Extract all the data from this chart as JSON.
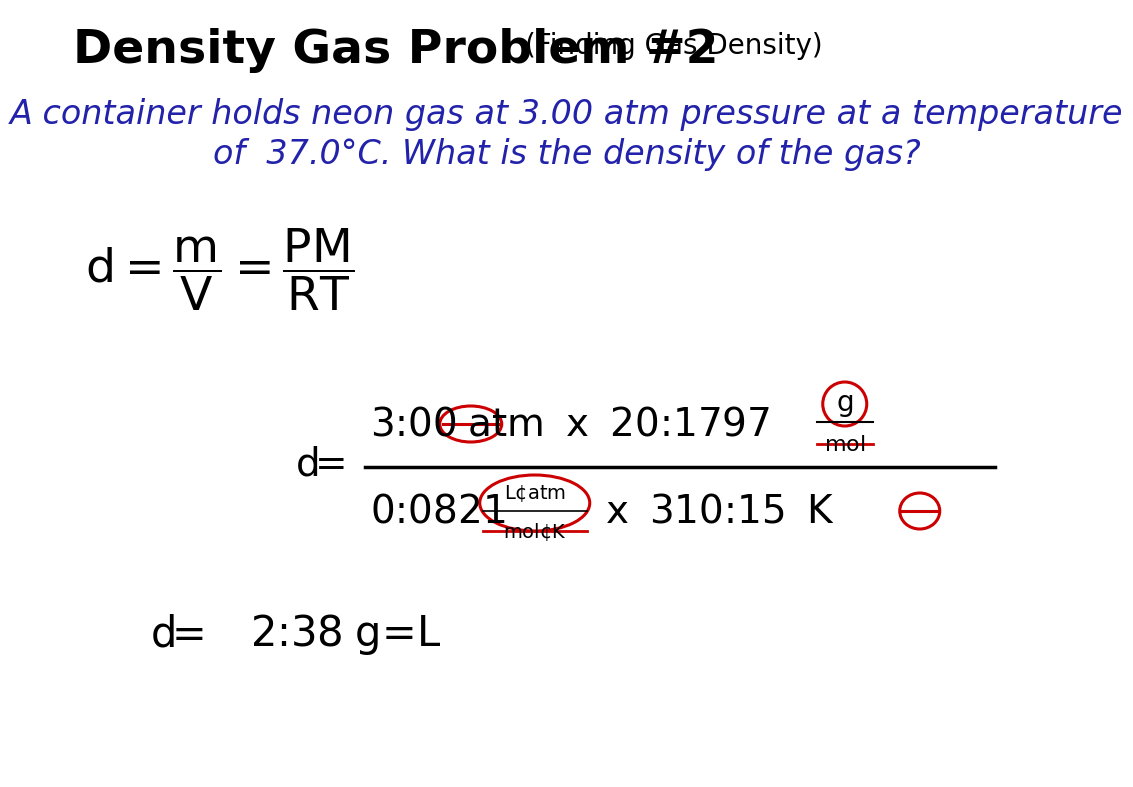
{
  "title_main": "Density Gas Problem #2",
  "title_sub": "(Finding Gas Density)",
  "question_line1": "A container holds neon gas at 3.00 atm pressure at a temperature",
  "question_line2": "of  37.0°C. What is the density of the gas?",
  "title_color": "#000000",
  "sub_color": "#000000",
  "question_color": "#2222aa",
  "formula_color": "#000000",
  "calc_color": "#000000",
  "result_color": "#000000",
  "circle_color": "#cc0000",
  "bg_color": "#ffffff",
  "title_fontsize": 34,
  "sub_fontsize": 20,
  "question_fontsize": 24,
  "formula_fontsize": 34,
  "calc_fontsize": 28,
  "result_fontsize": 30
}
